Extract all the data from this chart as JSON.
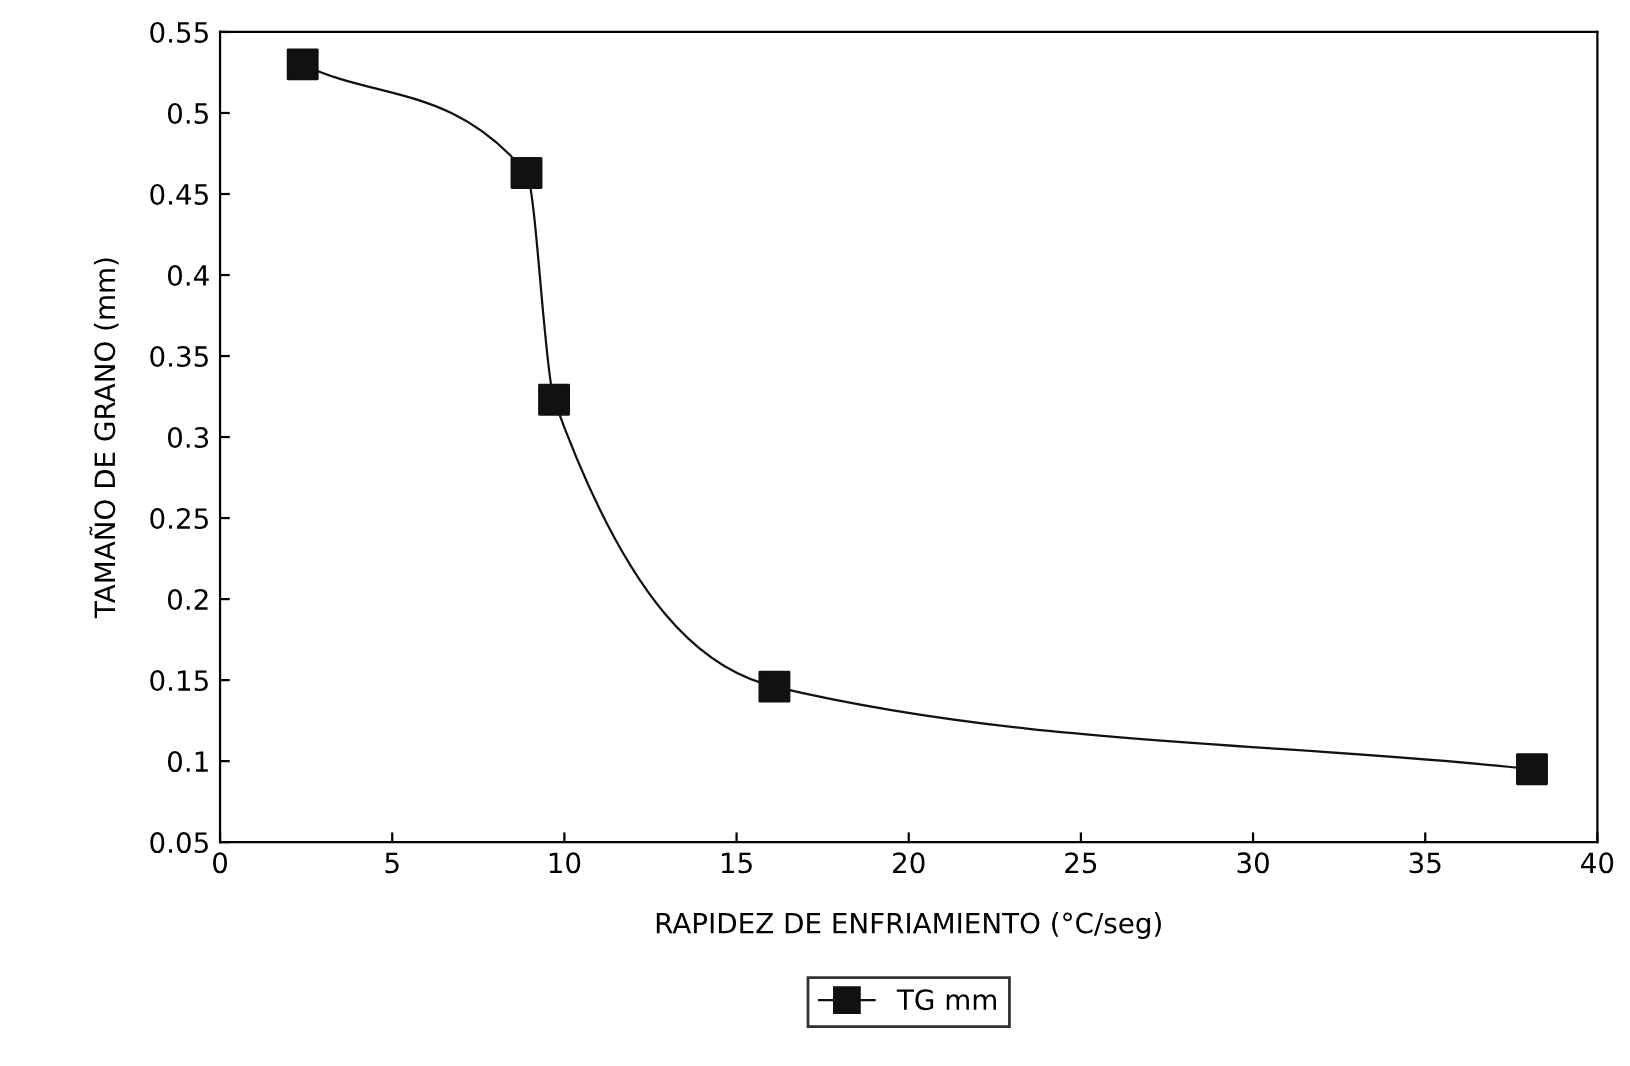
{
  "chart_data": {
    "type": "line",
    "xlabel": "RAPIDEZ DE ENFRIAMIENTO (°C/seg)",
    "ylabel": "TAMAÑO DE GRANO (mm)",
    "x": [
      2.4,
      8.9,
      9.7,
      16.1,
      38.1
    ],
    "series": [
      {
        "name": "TG mm",
        "color": "#111111",
        "values": [
          0.53,
          0.463,
          0.323,
          0.146,
          0.095
        ]
      }
    ],
    "xlim": [
      0,
      40
    ],
    "xticks": [
      0,
      5,
      10,
      15,
      20,
      25,
      30,
      35,
      40
    ],
    "ylim": [
      0.05,
      0.55
    ],
    "yticks": [
      0.05,
      0.1,
      0.15,
      0.2,
      0.25,
      0.3,
      0.35,
      0.4,
      0.45,
      0.5,
      0.55
    ],
    "marker": "square",
    "line_style": "solid",
    "legend": "bottom",
    "grid": false
  }
}
